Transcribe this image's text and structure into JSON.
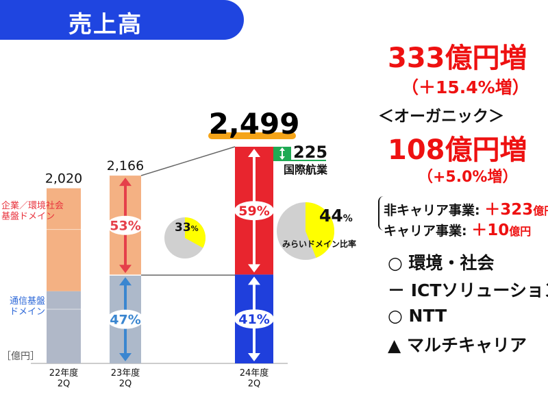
{
  "header": {
    "title": "売上高"
  },
  "chart_data": {
    "type": "bar",
    "unit_label": "［億円］",
    "categories": [
      "22年度\n2Q",
      "23年度\n2Q",
      "24年度\n2Q"
    ],
    "totals": [
      "2,020",
      "2,166",
      "2,499"
    ],
    "series": [
      {
        "name": "通信基盤\nドメイン",
        "values": [
          833,
          1018,
          1025
        ],
        "percent_labels": [
          "",
          "47%",
          "41%"
        ]
      },
      {
        "name": "企業／環境社会\n基盤ドメイン",
        "values": [
          1187,
          1148,
          1474
        ],
        "percent_labels": [
          "",
          "53%",
          "59%"
        ]
      }
    ],
    "ylim": [
      0,
      2600
    ],
    "increment": {
      "value": "225",
      "label": "国際航業"
    },
    "pies": [
      {
        "value": 33,
        "label_num": "33",
        "label_pct": "%"
      },
      {
        "value": 44,
        "label_num": "44",
        "label_pct": "%",
        "caption": "みらいドメイン比率"
      }
    ],
    "colors": {
      "domain_22_bottom": "#b0b8c8",
      "domain_22_top": "#f4b183",
      "bottom_23": "#adb9ca",
      "top_23": "#f4b183",
      "bottom_24": "#1f3fdc",
      "top_24": "#e8252e",
      "increment": "#1faa54",
      "underline": "#f5a418",
      "pie_yellow": "#ffff00",
      "pie_gray": "#d0d0d0"
    }
  },
  "right_panel": {
    "growth": "333億円増",
    "growth_pct": "（＋15.4%増）",
    "organic_label": "＜オーガニック＞",
    "organic_growth": "108億円増",
    "organic_pct": "（+5.0%増）",
    "noncarrier_label": "非キャリア事業:",
    "noncarrier_value": "＋323",
    "noncarrier_unit": "億円",
    "carrier_label": "キャリア事業:",
    "carrier_value": "＋10",
    "carrier_unit": "億円"
  },
  "legend": [
    {
      "symbol": "○",
      "label": "環境・社会"
    },
    {
      "symbol": "－",
      "label": "ICTソリューション"
    },
    {
      "symbol": "○",
      "label": "NTT"
    },
    {
      "symbol": "▲",
      "label": "マルチキャリア"
    }
  ]
}
